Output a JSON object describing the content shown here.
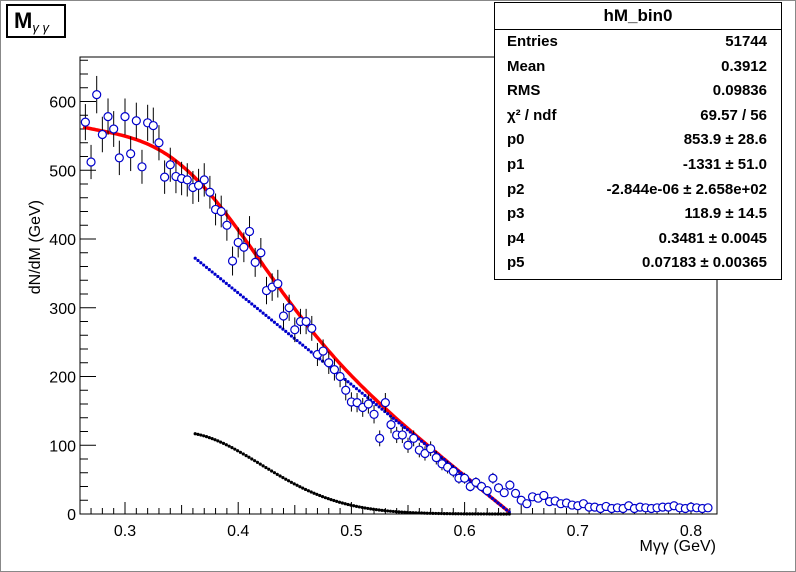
{
  "title": {
    "main": "M",
    "sub": "γ γ"
  },
  "stats": {
    "header": "hM_bin0",
    "rows": [
      {
        "key": "Entries",
        "value": "51744"
      },
      {
        "key": "Mean",
        "value": "0.3912"
      },
      {
        "key": "RMS",
        "value": "0.09836"
      },
      {
        "key": "χ² / ndf",
        "value": "69.57 / 56"
      },
      {
        "key": "p0",
        "value": "853.9 ± 28.6"
      },
      {
        "key": "p1",
        "value": "-1331 ± 51.0"
      },
      {
        "key": "p2",
        "value": "-2.844e-06 ± 2.658e+02"
      },
      {
        "key": "p3",
        "value": "118.9 ± 14.5"
      },
      {
        "key": "p4",
        "value": "0.3481 ± 0.0045"
      },
      {
        "key": "p5",
        "value": "0.07183 ± 0.00365"
      }
    ]
  },
  "chart_data": {
    "type": "scatter",
    "xlabel": "Mγγ (GeV)",
    "ylabel": "dN/dM (GeV)",
    "xlim": [
      0.26,
      0.82
    ],
    "ylim": [
      0,
      665
    ],
    "xticks": [
      "0.3",
      "0.4",
      "0.5",
      "0.6",
      "0.7",
      "0.8"
    ],
    "yticks": [
      "0",
      "100",
      "200",
      "300",
      "400",
      "500",
      "600"
    ],
    "colors": {
      "data": "#0000cc",
      "total_fit": "#ff0000",
      "background": "#0000cc",
      "signal": "#000000"
    },
    "series": [
      {
        "kind": "data_points",
        "x": [
          0.265,
          0.27,
          0.275,
          0.28,
          0.285,
          0.29,
          0.295,
          0.3,
          0.305,
          0.31,
          0.315,
          0.32,
          0.325,
          0.33,
          0.335,
          0.34,
          0.345,
          0.35,
          0.355,
          0.36,
          0.365,
          0.37,
          0.375,
          0.38,
          0.385,
          0.39,
          0.395,
          0.4,
          0.405,
          0.41,
          0.415,
          0.42,
          0.425,
          0.43,
          0.435,
          0.44,
          0.445,
          0.45,
          0.455,
          0.46,
          0.465,
          0.47,
          0.475,
          0.48,
          0.485,
          0.49,
          0.495,
          0.5,
          0.505,
          0.51,
          0.515,
          0.52,
          0.525,
          0.53,
          0.535,
          0.54,
          0.545,
          0.55,
          0.555,
          0.56,
          0.565,
          0.57,
          0.575,
          0.58,
          0.585,
          0.59,
          0.595,
          0.6,
          0.605,
          0.61,
          0.615,
          0.62,
          0.625,
          0.63,
          0.635,
          0.64,
          0.645,
          0.65,
          0.655,
          0.66,
          0.665,
          0.67,
          0.675,
          0.68,
          0.685,
          0.69,
          0.695,
          0.7,
          0.705,
          0.71,
          0.715,
          0.72,
          0.725,
          0.73,
          0.735,
          0.74,
          0.745,
          0.75,
          0.755,
          0.76,
          0.765,
          0.77,
          0.775,
          0.78,
          0.785,
          0.79,
          0.795,
          0.8,
          0.805,
          0.81,
          0.815
        ],
        "y": [
          570,
          512,
          610,
          552,
          578,
          560,
          518,
          578,
          524,
          572,
          505,
          569,
          565,
          540,
          490,
          508,
          491,
          488,
          486,
          475,
          478,
          486,
          468,
          443,
          440,
          420,
          368,
          395,
          388,
          411,
          366,
          380,
          325,
          330,
          335,
          288,
          300,
          268,
          280,
          280,
          270,
          232,
          237,
          220,
          210,
          200,
          180,
          163,
          162,
          155,
          160,
          145,
          110,
          162,
          130,
          115,
          115,
          100,
          110,
          93,
          88,
          95,
          82,
          73,
          68,
          62,
          52,
          52,
          40,
          46,
          40,
          34,
          52,
          38,
          31,
          42,
          30,
          20,
          15,
          25,
          23,
          27,
          18,
          19,
          15,
          16,
          13,
          12,
          15,
          10,
          10,
          8,
          11,
          8,
          9,
          8,
          12,
          8,
          10,
          9,
          8,
          9,
          10,
          10,
          12,
          9,
          8,
          10,
          9,
          8,
          9
        ],
        "error_approx": "sqrt"
      },
      {
        "kind": "total_fit",
        "function": "p0 + p1*x + p2*x^2 + p3*exp(-0.5*((x-p4)/p5)^2)",
        "x_range": [
          0.26,
          0.64
        ]
      },
      {
        "kind": "background",
        "function": "p0 + p1*x + p2*x^2",
        "x_range": [
          0.36,
          0.64
        ]
      },
      {
        "kind": "signal",
        "function": "p3*exp(-0.5*((x-p4)/p5)^2)",
        "x_range": [
          0.36,
          0.64
        ]
      }
    ],
    "params": {
      "p0": 853.9,
      "p1": -1331,
      "p2": -2.844e-06,
      "p3": 118.9,
      "p4": 0.3481,
      "p5": 0.07183
    },
    "grid": false,
    "legend": "top-right"
  }
}
